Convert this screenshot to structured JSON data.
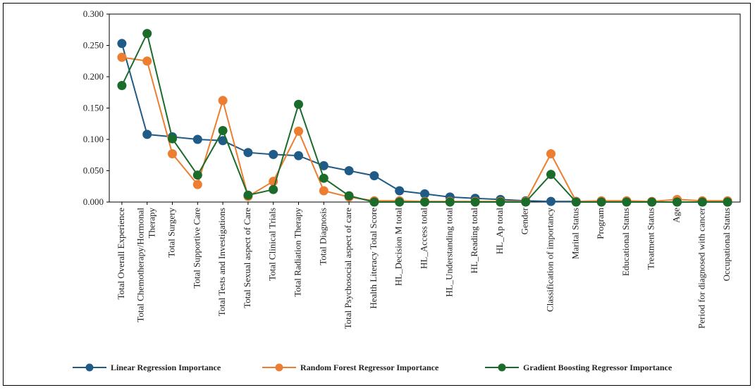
{
  "chart_data": {
    "type": "line",
    "title": "",
    "xlabel": "",
    "ylabel": "",
    "ylim": [
      0,
      0.3
    ],
    "yticks": [
      "0.000",
      "0.050",
      "0.100",
      "0.150",
      "0.200",
      "0.250",
      "0.300"
    ],
    "grid": false,
    "legend_position": "bottom",
    "categories": [
      [
        "Total Overall Experience"
      ],
      [
        "Total Chemotherapy/Hormonal",
        "Therapy"
      ],
      [
        "Total Surgery"
      ],
      [
        "Total Supportive Care"
      ],
      [
        "Total Tests and Investigations"
      ],
      [
        "Total Sexual aspect of Care"
      ],
      [
        "Total Clinical Trials"
      ],
      [
        "Total Radiation Therapy"
      ],
      [
        "Total Diagnosis"
      ],
      [
        "Total Psychosocial aspect of care"
      ],
      [
        "Health Literacy Total Score"
      ],
      [
        "HL_Decision M total"
      ],
      [
        "HL_Access total"
      ],
      [
        "HL_Understanding total"
      ],
      [
        "HL_Reading total"
      ],
      [
        "HL_Ap total"
      ],
      [
        "Gender"
      ],
      [
        "Classification of importancy"
      ],
      [
        "Marital Status"
      ],
      [
        "Program"
      ],
      [
        "Educational Status"
      ],
      [
        "Treatment Status"
      ],
      [
        "Age"
      ],
      [
        "Period for diagnosed with cancer"
      ],
      [
        "Occupational Status"
      ]
    ],
    "series": [
      {
        "name": "Linear Regression Importance",
        "color": "#1f5b86",
        "values": [
          0.253,
          0.108,
          0.104,
          0.1,
          0.098,
          0.079,
          0.076,
          0.074,
          0.058,
          0.05,
          0.042,
          0.018,
          0.013,
          0.008,
          0.006,
          0.004,
          0.002,
          0.001,
          0.001,
          0.001,
          0.001,
          0.0,
          0.0,
          0.0,
          0.0
        ]
      },
      {
        "name": "Random Forest Regressor Importance",
        "color": "#ed7d31",
        "values": [
          0.231,
          0.225,
          0.077,
          0.028,
          0.162,
          0.009,
          0.033,
          0.113,
          0.018,
          0.008,
          0.002,
          0.002,
          0.001,
          0.001,
          0.001,
          0.001,
          0.001,
          0.077,
          0.001,
          0.002,
          0.002,
          0.001,
          0.004,
          0.002,
          0.002
        ]
      },
      {
        "name": "Gradient Boosting Regressor Importance",
        "color": "#1b6b2b",
        "values": [
          0.186,
          0.269,
          0.101,
          0.043,
          0.114,
          0.011,
          0.02,
          0.156,
          0.038,
          0.01,
          0.0,
          0.0,
          0.0,
          0.0,
          0.0,
          0.0,
          0.0,
          0.044,
          0.0,
          0.0,
          0.0,
          0.0,
          0.0,
          0.0,
          0.0
        ]
      }
    ]
  }
}
